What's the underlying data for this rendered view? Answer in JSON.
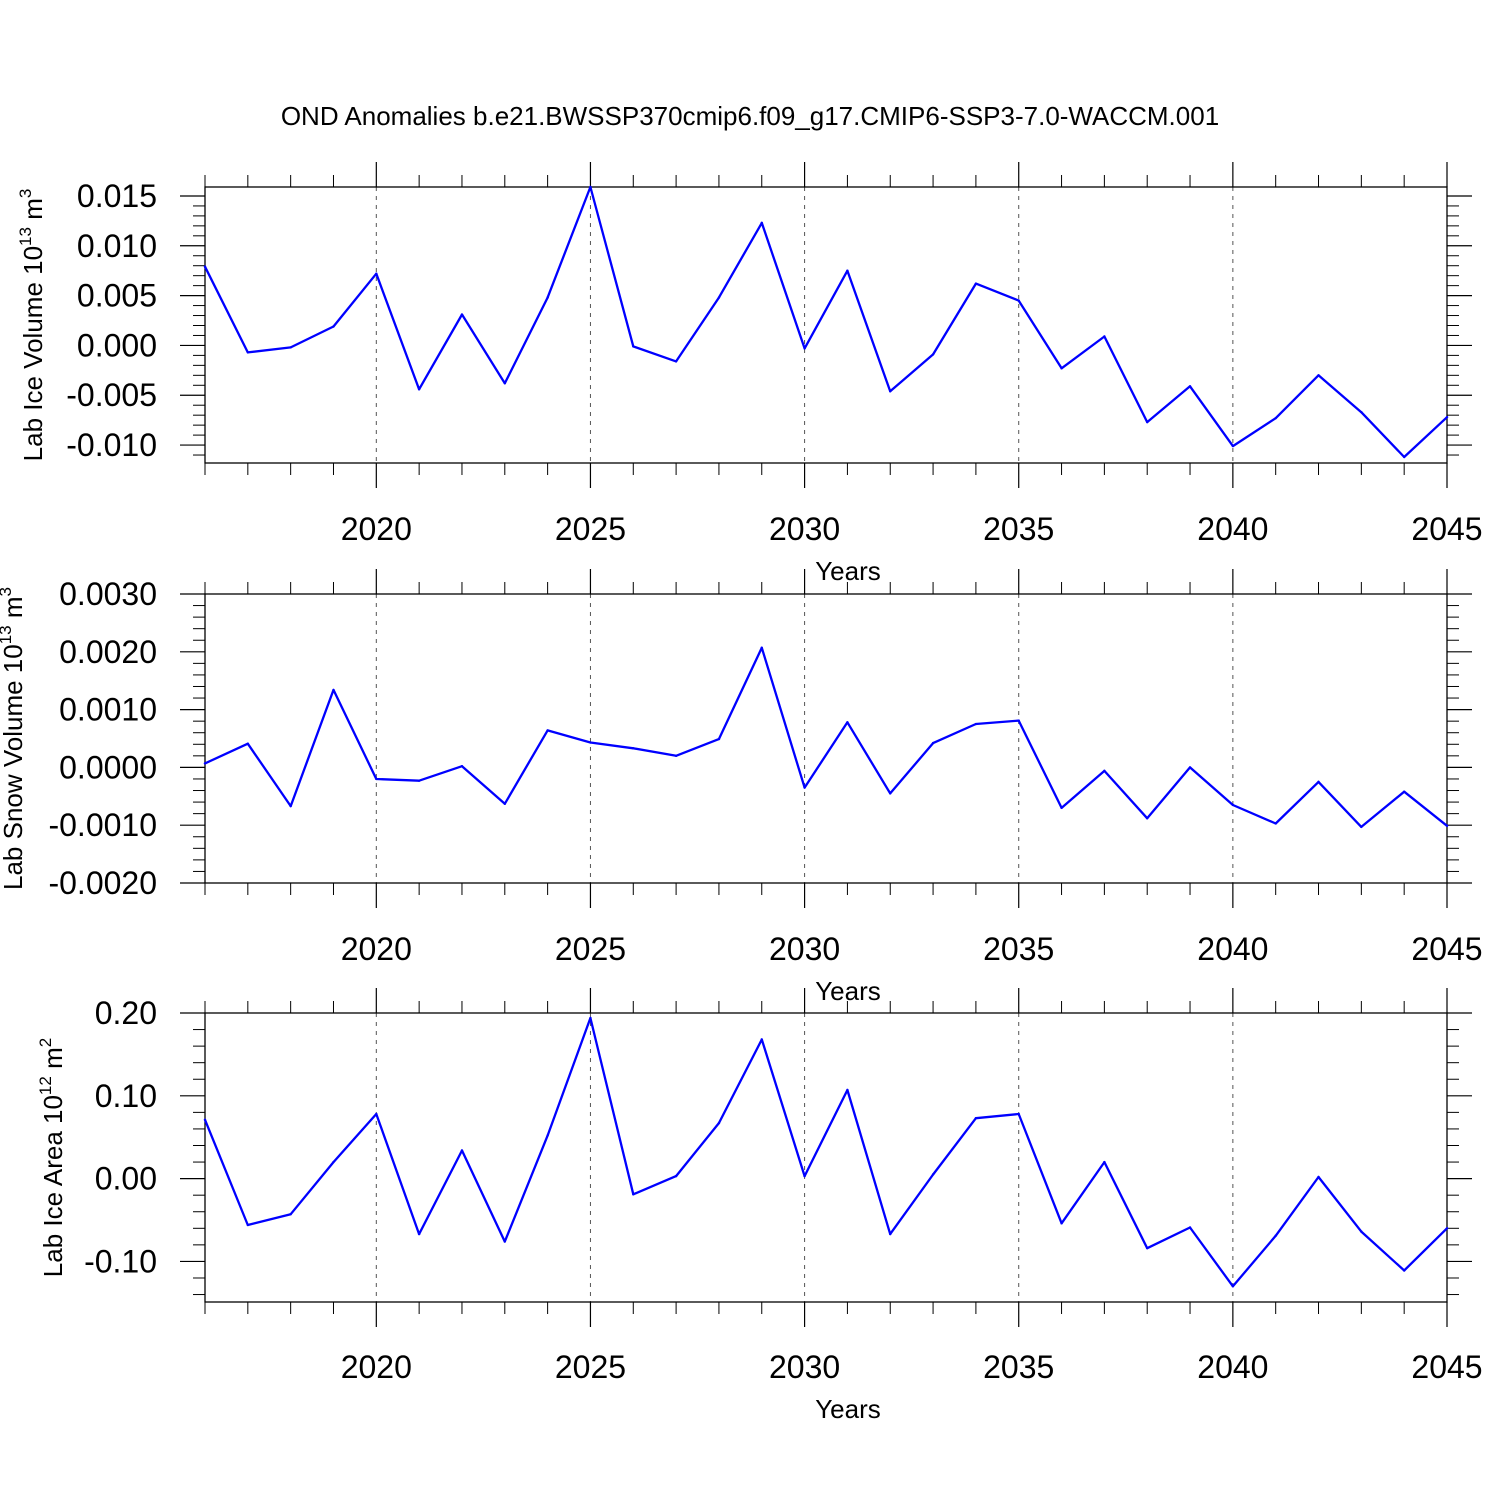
{
  "chart_data": [
    {
      "type": "line",
      "title": "OND Anomalies b.e21.BWSSP370cmip6.f09_g17.CMIP6-SSP3-7.0-WACCM.001",
      "xlabel": "Years",
      "ylabel": {
        "main": "Lab Ice Volume 10",
        "exponent": "13",
        "unit": " m",
        "unit_exponent": "3"
      },
      "xlim": [
        2016,
        2045
      ],
      "ylim": [
        -0.0118,
        0.0159
      ],
      "x_ticks": [
        2020,
        2025,
        2030,
        2035,
        2040,
        2045
      ],
      "x_tick_labels": [
        "2020",
        "2025",
        "2030",
        "2035",
        "2040",
        "2045"
      ],
      "y_ticks": [
        -0.01,
        -0.005,
        0.0,
        0.005,
        0.01,
        0.015
      ],
      "y_tick_labels": [
        "-0.010",
        "-0.005",
        "0.000",
        "0.005",
        "0.010",
        "0.015"
      ],
      "y_minor_step": 0.001,
      "grid": "dashed vertical at labeled years",
      "series": [
        {
          "name": "Lab Ice Volume",
          "color": "#0000ff",
          "x": [
            2016,
            2017,
            2018,
            2019,
            2020,
            2021,
            2022,
            2023,
            2024,
            2025,
            2026,
            2027,
            2028,
            2029,
            2030,
            2031,
            2032,
            2033,
            2034,
            2035,
            2036,
            2037,
            2038,
            2039,
            2040,
            2041,
            2042,
            2043,
            2044,
            2045
          ],
          "values": [
            0.0079,
            -0.0007,
            -0.0002,
            0.0019,
            0.0072,
            -0.0044,
            0.0031,
            -0.0038,
            0.0048,
            0.0159,
            -0.0001,
            -0.0016,
            0.0048,
            0.0123,
            -0.0003,
            0.0075,
            -0.0046,
            -0.0009,
            0.0062,
            0.0045,
            -0.0023,
            0.0009,
            -0.0077,
            -0.0041,
            -0.0101,
            -0.0073,
            -0.003,
            -0.0067,
            -0.0112,
            -0.0072
          ]
        }
      ]
    },
    {
      "type": "line",
      "title": "",
      "xlabel": "Years",
      "ylabel": {
        "main": "Lab Snow Volume 10",
        "exponent": "13",
        "unit": " m",
        "unit_exponent": "3"
      },
      "xlim": [
        2016,
        2045
      ],
      "ylim": [
        -0.002,
        0.003
      ],
      "x_ticks": [
        2020,
        2025,
        2030,
        2035,
        2040,
        2045
      ],
      "x_tick_labels": [
        "2020",
        "2025",
        "2030",
        "2035",
        "2040",
        "2045"
      ],
      "y_ticks": [
        -0.002,
        -0.001,
        0.0,
        0.001,
        0.002,
        0.003
      ],
      "y_tick_labels": [
        "-0.0020",
        "-0.0010",
        "0.0000",
        "0.0010",
        "0.0020",
        "0.0030"
      ],
      "y_minor_step": 0.0002,
      "grid": "dashed vertical at labeled years",
      "series": [
        {
          "name": "Lab Snow Volume",
          "color": "#0000ff",
          "x": [
            2016,
            2017,
            2018,
            2019,
            2020,
            2021,
            2022,
            2023,
            2024,
            2025,
            2026,
            2027,
            2028,
            2029,
            2030,
            2031,
            2032,
            2033,
            2034,
            2035,
            2036,
            2037,
            2038,
            2039,
            2040,
            2041,
            2042,
            2043,
            2044,
            2045
          ],
          "values": [
            7e-05,
            0.00041,
            -0.00067,
            0.00134,
            -0.0002,
            -0.00023,
            2e-05,
            -0.00063,
            0.00064,
            0.00043,
            0.00033,
            0.0002,
            0.00049,
            0.00207,
            -0.00035,
            0.00078,
            -0.00045,
            0.00042,
            0.00075,
            0.00081,
            -0.0007,
            -6e-05,
            -0.00088,
            0.0,
            -0.00065,
            -0.00097,
            -0.00025,
            -0.00103,
            -0.00042,
            -0.00101
          ]
        }
      ]
    },
    {
      "type": "line",
      "title": "",
      "xlabel": "Years",
      "ylabel": {
        "main": "Lab Ice Area 10",
        "exponent": "12",
        "unit": " m",
        "unit_exponent": "2"
      },
      "xlim": [
        2016,
        2045
      ],
      "ylim": [
        -0.149,
        0.2
      ],
      "x_ticks": [
        2020,
        2025,
        2030,
        2035,
        2040,
        2045
      ],
      "x_tick_labels": [
        "2020",
        "2025",
        "2030",
        "2035",
        "2040",
        "2045"
      ],
      "y_ticks": [
        -0.1,
        0.0,
        0.1,
        0.2
      ],
      "y_tick_labels": [
        "-0.10",
        "0.00",
        "0.10",
        "0.20"
      ],
      "y_minor_step": 0.02,
      "grid": "dashed vertical at labeled years",
      "series": [
        {
          "name": "Lab Ice Area",
          "color": "#0000ff",
          "x": [
            2016,
            2017,
            2018,
            2019,
            2020,
            2021,
            2022,
            2023,
            2024,
            2025,
            2026,
            2027,
            2028,
            2029,
            2030,
            2031,
            2032,
            2033,
            2034,
            2035,
            2036,
            2037,
            2038,
            2039,
            2040,
            2041,
            2042,
            2043,
            2044,
            2045
          ],
          "values": [
            0.071,
            -0.056,
            -0.043,
            0.02,
            0.078,
            -0.067,
            0.034,
            -0.076,
            0.052,
            0.194,
            -0.019,
            0.003,
            0.067,
            0.168,
            0.003,
            0.107,
            -0.067,
            0.005,
            0.073,
            0.078,
            -0.054,
            0.02,
            -0.084,
            -0.059,
            -0.13,
            -0.069,
            0.002,
            -0.064,
            -0.111,
            -0.06
          ]
        }
      ]
    }
  ]
}
